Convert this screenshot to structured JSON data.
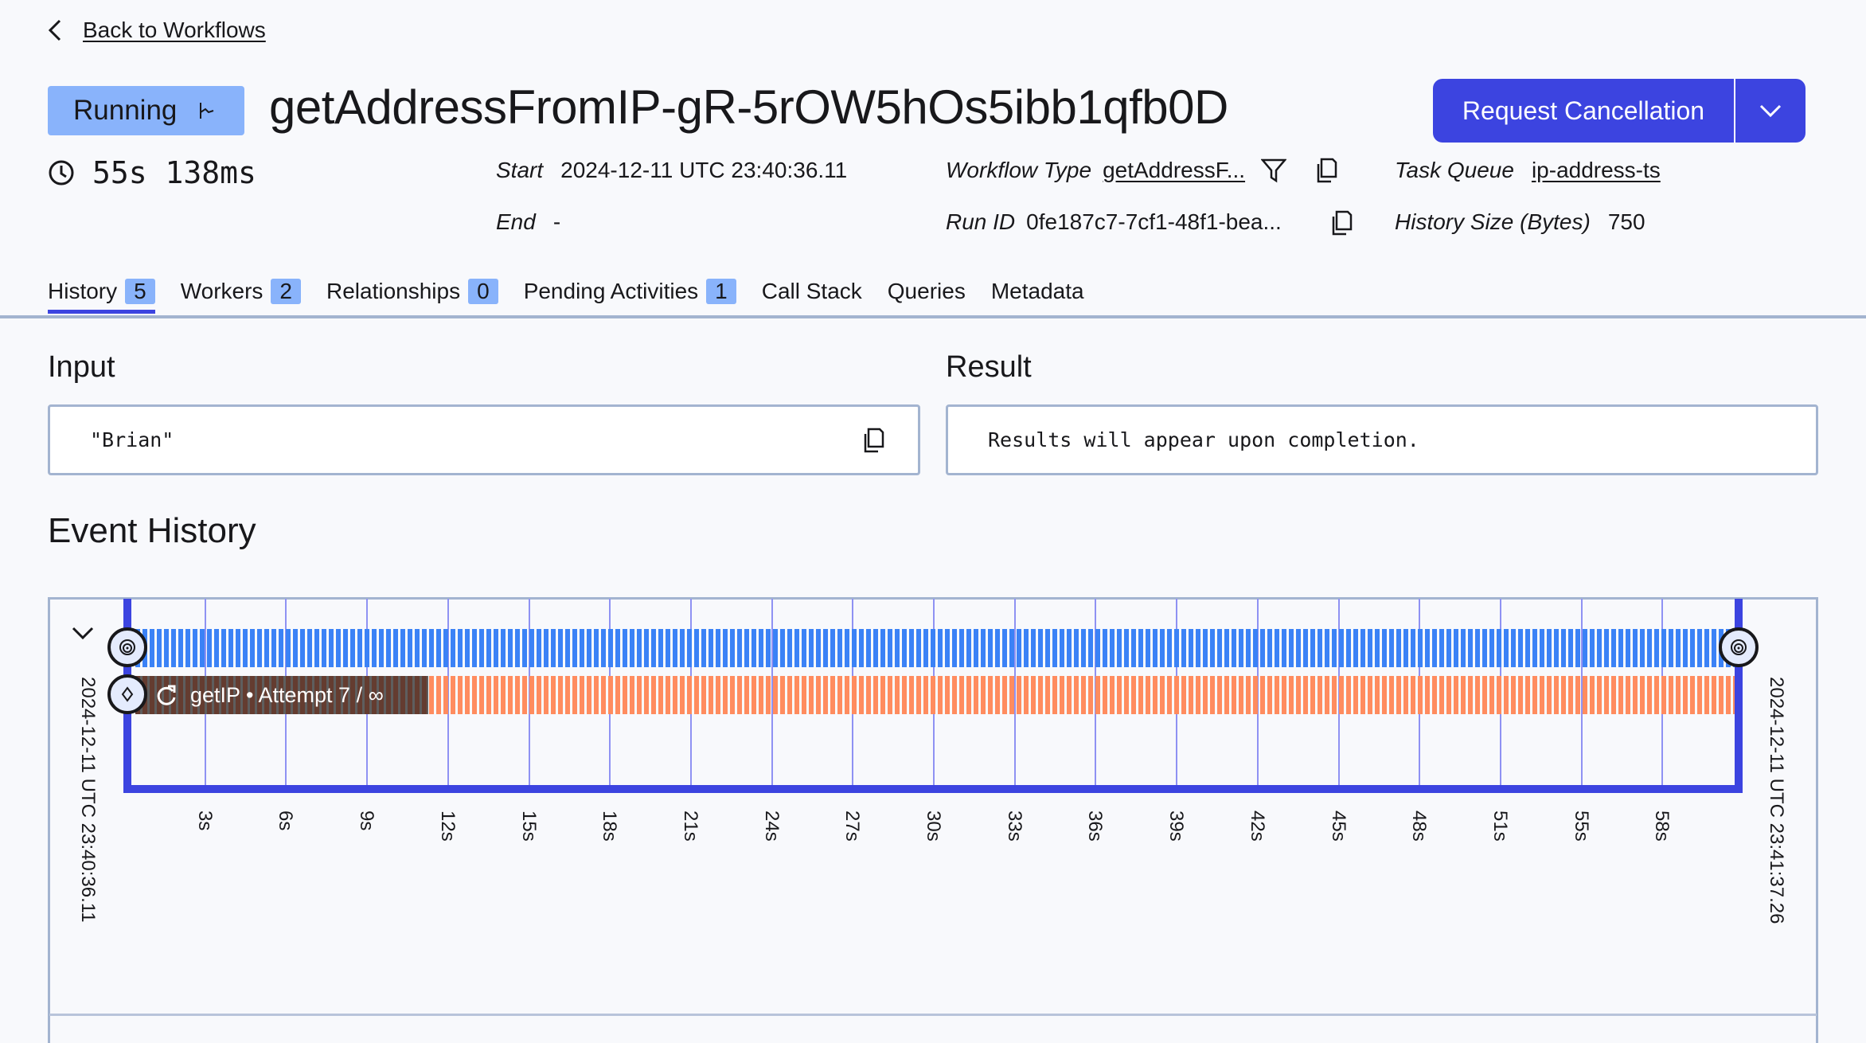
{
  "nav": {
    "back_label": "Back to Workflows"
  },
  "header": {
    "status": "Running",
    "workflow_id": "getAddressFromIP-gR-5rOW5hOs5ibb1qfb0D",
    "primary_action": "Request Cancellation",
    "duration": "55s 138ms",
    "start_label": "Start",
    "start_value": "2024-12-11 UTC 23:40:36.11",
    "end_label": "End",
    "end_value": "-",
    "workflow_type_label": "Workflow Type",
    "workflow_type_value": "getAddressF...",
    "run_id_label": "Run ID",
    "run_id_value": "0fe187c7-7cf1-48f1-bea...",
    "task_queue_label": "Task Queue",
    "task_queue_value": "ip-address-ts",
    "history_size_label": "History Size (Bytes)",
    "history_size_value": "750"
  },
  "tabs": [
    {
      "label": "History",
      "count": "5",
      "active": true
    },
    {
      "label": "Workers",
      "count": "2"
    },
    {
      "label": "Relationships",
      "count": "0"
    },
    {
      "label": "Pending Activities",
      "count": "1"
    },
    {
      "label": "Call Stack"
    },
    {
      "label": "Queries"
    },
    {
      "label": "Metadata"
    }
  ],
  "input": {
    "title": "Input",
    "value": "\"Brian\""
  },
  "result": {
    "title": "Result",
    "value": "Results will appear upon completion."
  },
  "event_history": {
    "title": "Event History",
    "start_time": "2024-12-11 UTC 23:40:36.11",
    "end_time": "2024-12-11 UTC 23:41:37.26",
    "activity_label": "getIP • Attempt 7 / ∞",
    "ticks": [
      "3s",
      "6s",
      "9s",
      "12s",
      "15s",
      "18s",
      "21s",
      "24s",
      "27s",
      "30s",
      "33s",
      "36s",
      "39s",
      "42s",
      "45s",
      "48s",
      "51s",
      "55s",
      "58s"
    ],
    "colors": {
      "workflow": "#3b82f6",
      "activity": "#ff8c5f",
      "axis": "#3c44e0"
    }
  }
}
